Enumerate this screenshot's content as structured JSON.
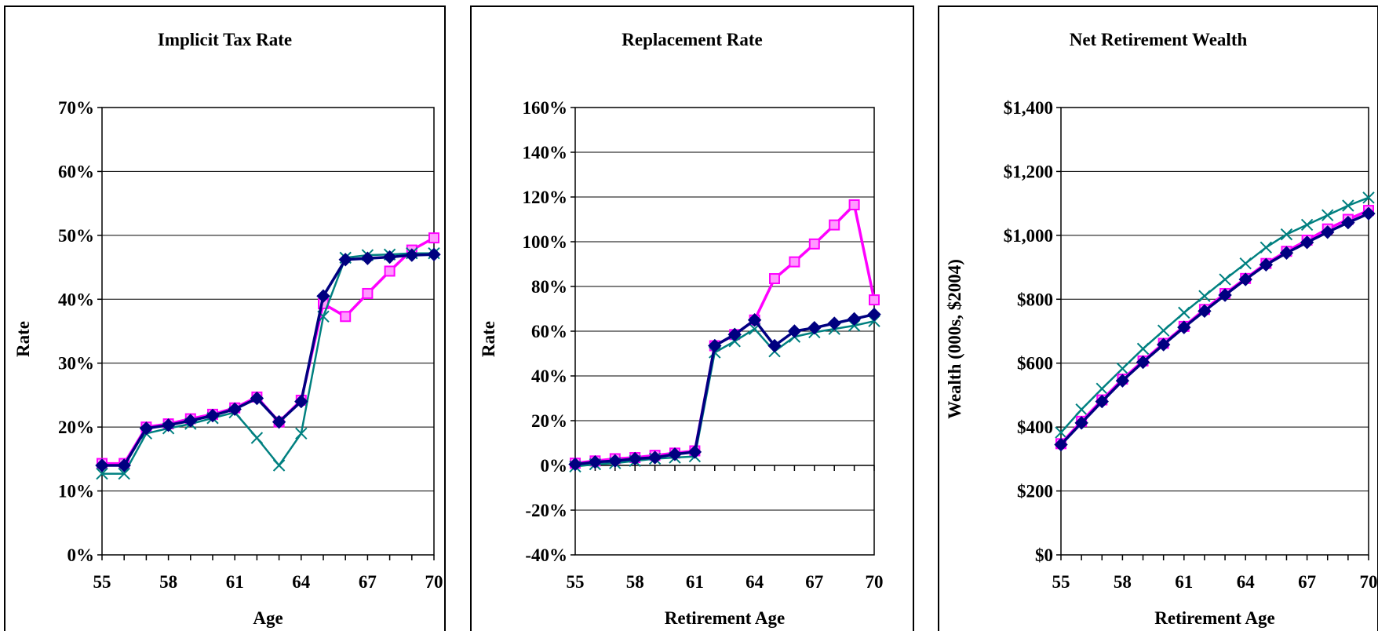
{
  "chart_data": [
    {
      "type": "line",
      "title": "Implicit Tax Rate",
      "xlabel": "Age",
      "ylabel": "Rate",
      "xlim": [
        55,
        70
      ],
      "ylim": [
        0,
        70
      ],
      "x_ticks": [
        "55",
        "58",
        "61",
        "64",
        "67",
        "70"
      ],
      "y_ticks": [
        "0%",
        "10%",
        "20%",
        "30%",
        "40%",
        "50%",
        "60%",
        "70%"
      ],
      "y_tick_values": [
        0,
        10,
        20,
        30,
        40,
        50,
        60,
        70
      ],
      "grid": "horizontal",
      "legend": "none",
      "x": [
        55,
        56,
        57,
        58,
        59,
        60,
        61,
        62,
        63,
        64,
        65,
        66,
        67,
        68,
        69,
        70
      ],
      "series": [
        {
          "marker": "square",
          "color": "#ff00ff",
          "values": [
            14.3,
            14.3,
            20.0,
            20.5,
            21.3,
            22.0,
            23.0,
            24.7,
            20.8,
            24.2,
            39.3,
            37.3,
            40.9,
            44.4,
            47.7,
            49.6
          ]
        },
        {
          "marker": "cross",
          "color": "#008080",
          "values": [
            12.7,
            12.7,
            19.0,
            19.8,
            20.5,
            21.4,
            22.3,
            18.3,
            14.0,
            19.0,
            37.3,
            46.5,
            46.9,
            47.0,
            47.2,
            47.2
          ]
        },
        {
          "marker": "diamond",
          "color": "#000080",
          "values": [
            14.0,
            14.0,
            19.8,
            20.3,
            21.0,
            21.8,
            22.8,
            24.5,
            20.8,
            24.0,
            40.5,
            46.2,
            46.4,
            46.6,
            46.9,
            47.0
          ]
        }
      ]
    },
    {
      "type": "line",
      "title": "Replacement Rate",
      "xlabel": "Retirement Age",
      "ylabel": "Rate",
      "xlim": [
        55,
        70
      ],
      "ylim": [
        -40,
        160
      ],
      "x_ticks": [
        "55",
        "58",
        "61",
        "64",
        "67",
        "70"
      ],
      "y_ticks": [
        "-40%",
        "-20%",
        "0%",
        "20%",
        "40%",
        "60%",
        "80%",
        "100%",
        "120%",
        "140%",
        "160%"
      ],
      "y_tick_values": [
        -40,
        -20,
        0,
        20,
        40,
        60,
        80,
        100,
        120,
        140,
        160
      ],
      "grid": "horizontal",
      "legend": "none",
      "x": [
        55,
        56,
        57,
        58,
        59,
        60,
        61,
        62,
        63,
        64,
        65,
        66,
        67,
        68,
        69,
        70
      ],
      "series": [
        {
          "marker": "square",
          "color": "#ff00ff",
          "values": [
            1,
            2,
            3,
            3.5,
            4.5,
            5.5,
            6.5,
            53.5,
            58.5,
            65,
            83.5,
            91,
            99,
            107.5,
            116.5,
            74
          ]
        },
        {
          "marker": "cross",
          "color": "#008080",
          "values": [
            -0.5,
            0.5,
            1,
            2,
            3,
            3.5,
            4,
            50.5,
            55.5,
            61,
            51,
            57.5,
            59.5,
            61,
            62.5,
            64.5
          ]
        },
        {
          "marker": "diamond",
          "color": "#000080",
          "values": [
            0.5,
            1.5,
            2,
            3,
            3.5,
            5,
            6,
            53.5,
            58.5,
            65,
            53.5,
            60,
            61.5,
            63.5,
            65.5,
            67.5
          ]
        }
      ]
    },
    {
      "type": "line",
      "title": "Net Retirement Wealth",
      "xlabel": "Retirement Age",
      "ylabel": "Wealth (000s, $2004)",
      "xlim": [
        55,
        70
      ],
      "ylim": [
        0,
        1400
      ],
      "x_ticks": [
        "55",
        "58",
        "61",
        "64",
        "67",
        "70"
      ],
      "y_ticks": [
        "$0",
        "$200",
        "$400",
        "$600",
        "$800",
        "$1,000",
        "$1,200",
        "$1,400"
      ],
      "y_tick_values": [
        0,
        200,
        400,
        600,
        800,
        1000,
        1200,
        1400
      ],
      "grid": "horizontal",
      "legend": "none",
      "x": [
        55,
        56,
        57,
        58,
        59,
        60,
        61,
        62,
        63,
        64,
        65,
        66,
        67,
        68,
        69,
        70
      ],
      "series": [
        {
          "marker": "cross",
          "color": "#008080",
          "values": [
            383,
            455,
            520,
            583,
            645,
            702,
            758,
            810,
            862,
            912,
            962,
            1003,
            1033,
            1063,
            1093,
            1118
          ]
        },
        {
          "marker": "square",
          "color": "#ff00ff",
          "values": [
            348,
            418,
            485,
            550,
            607,
            662,
            715,
            768,
            818,
            865,
            912,
            950,
            985,
            1020,
            1050,
            1078
          ]
        },
        {
          "marker": "diamond",
          "color": "#000080",
          "values": [
            345,
            413,
            480,
            545,
            603,
            658,
            712,
            763,
            813,
            862,
            908,
            945,
            978,
            1010,
            1040,
            1068
          ]
        }
      ]
    }
  ]
}
